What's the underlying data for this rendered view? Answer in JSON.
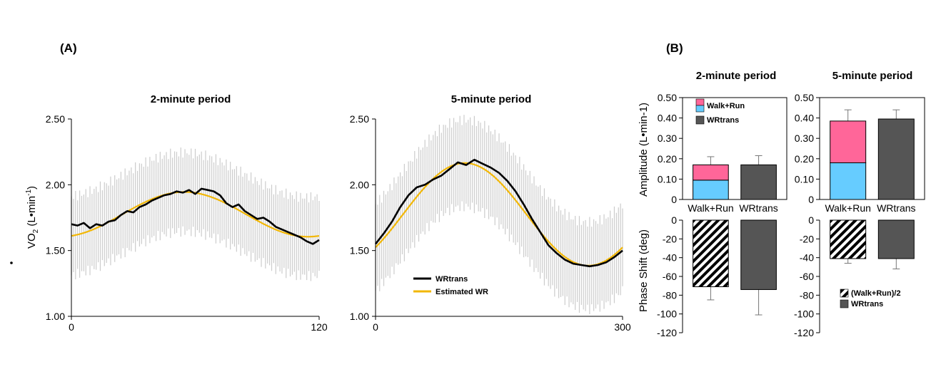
{
  "panels": {
    "a": "(A)",
    "b": "(B)"
  },
  "left_axis_label": "VO2 (L•min-1)",
  "chart_data": [
    {
      "id": "a1",
      "type": "line",
      "title": "2-minute period",
      "xlim": [
        0,
        120
      ],
      "ylim": [
        1.0,
        2.5
      ],
      "x_ticks": [
        "0",
        "120"
      ],
      "y_ticks": [
        "1.00",
        "1.50",
        "2.00",
        "2.50"
      ],
      "ylabel": "VO2 (L•min-1)",
      "series": [
        {
          "name": "WRtrans",
          "x": [
            0,
            3,
            6,
            9,
            12,
            15,
            18,
            21,
            24,
            27,
            30,
            33,
            36,
            39,
            42,
            45,
            48,
            51,
            54,
            57,
            60,
            63,
            66,
            69,
            72,
            75,
            78,
            81,
            84,
            87,
            90,
            93,
            96,
            99,
            102,
            105,
            108,
            111,
            114,
            117,
            120
          ],
          "y": [
            1.7,
            1.69,
            1.71,
            1.67,
            1.7,
            1.69,
            1.72,
            1.73,
            1.77,
            1.8,
            1.79,
            1.83,
            1.85,
            1.88,
            1.9,
            1.92,
            1.93,
            1.95,
            1.94,
            1.96,
            1.93,
            1.97,
            1.96,
            1.95,
            1.92,
            1.86,
            1.83,
            1.85,
            1.8,
            1.77,
            1.74,
            1.75,
            1.72,
            1.68,
            1.66,
            1.64,
            1.62,
            1.6,
            1.57,
            1.55,
            1.58
          ]
        },
        {
          "name": "Estimated WR",
          "type": "sine",
          "mean": 1.775,
          "amplitude": 0.17,
          "phase_shift_deg": -74,
          "period": 120
        }
      ],
      "band": {
        "name": "SD",
        "mean": 1.775,
        "amplitude": 0.17,
        "period": 120,
        "phase_shift_deg": -74,
        "sd": 0.3
      }
    },
    {
      "id": "a2",
      "type": "line",
      "title": "5-minute period",
      "xlim": [
        0,
        300
      ],
      "ylim": [
        1.0,
        2.5
      ],
      "x_ticks": [
        "0",
        "300"
      ],
      "y_ticks": [
        "1.00",
        "1.50",
        "2.00",
        "2.50"
      ],
      "legend_position": "bottom-center",
      "series": [
        {
          "name": "WRtrans",
          "x": [
            0,
            10,
            20,
            30,
            40,
            50,
            60,
            70,
            80,
            90,
            100,
            110,
            120,
            130,
            140,
            150,
            160,
            170,
            180,
            190,
            200,
            210,
            220,
            230,
            240,
            250,
            260,
            270,
            280,
            290,
            300
          ],
          "y": [
            1.55,
            1.63,
            1.72,
            1.83,
            1.92,
            1.98,
            2.0,
            2.04,
            2.07,
            2.12,
            2.17,
            2.15,
            2.19,
            2.16,
            2.13,
            2.09,
            2.03,
            1.95,
            1.85,
            1.74,
            1.64,
            1.54,
            1.48,
            1.43,
            1.4,
            1.39,
            1.38,
            1.39,
            1.41,
            1.45,
            1.5
          ]
        },
        {
          "name": "Estimated WR",
          "type": "sine",
          "mean": 1.775,
          "amplitude": 0.39,
          "phase_shift_deg": -40,
          "period": 300
        }
      ],
      "band": {
        "name": "SD",
        "mean": 1.775,
        "amplitude": 0.39,
        "period": 300,
        "phase_shift_deg": -40,
        "sd": 0.33
      }
    },
    {
      "id": "b1",
      "type": "bar",
      "title": "2-minute period",
      "categories": [
        "Walk+Run",
        "WRtrans"
      ],
      "amplitude": {
        "ylabel": "Amplitude (L•min-1)",
        "ylim": [
          0,
          0.5
        ],
        "y_ticks": [
          "0",
          "0.10",
          "0.20",
          "0.30",
          "0.40",
          "0.50"
        ],
        "stacked_walk": 0.095,
        "stacked_run": 0.075,
        "walk_run_total": 0.17,
        "walk_run_error": 0.04,
        "wrtrans": 0.17,
        "wrtrans_error": 0.045
      },
      "phase": {
        "ylabel": "Phase Shift (deg)",
        "ylim": [
          -120,
          0
        ],
        "y_ticks": [
          "0",
          "-20",
          "-40",
          "-60",
          "-80",
          "-100",
          "-120"
        ],
        "walk_run_half": -71,
        "walk_run_half_error": 14,
        "wrtrans": -74,
        "wrtrans_error": 27
      },
      "legend": [
        "Walk+Run",
        "WRtrans"
      ]
    },
    {
      "id": "b2",
      "type": "bar",
      "title": "5-minute period",
      "categories": [
        "Walk+Run",
        "WRtrans"
      ],
      "amplitude": {
        "ylim": [
          0,
          0.5
        ],
        "y_ticks": [
          "0",
          "0.10",
          "0.20",
          "0.30",
          "0.40",
          "0.50"
        ],
        "stacked_walk": 0.18,
        "stacked_run": 0.205,
        "walk_run_total": 0.385,
        "walk_run_error": 0.055,
        "wrtrans": 0.395,
        "wrtrans_error": 0.045
      },
      "phase": {
        "ylim": [
          -120,
          0
        ],
        "y_ticks": [
          "0",
          "-20",
          "-40",
          "-60",
          "-80",
          "-100",
          "-120"
        ],
        "walk_run_half": -41,
        "walk_run_half_error": 5,
        "wrtrans": -41,
        "wrtrans_error": 11
      },
      "legend": [
        "(Walk+Run)/2",
        "WRtrans"
      ]
    }
  ],
  "colors": {
    "walk": "#66ccff",
    "run": "#ff6699",
    "wrtrans_bar": "#555555",
    "wrtrans_line": "#000000",
    "estimated": "#f2b705",
    "band": "#cccccc"
  }
}
